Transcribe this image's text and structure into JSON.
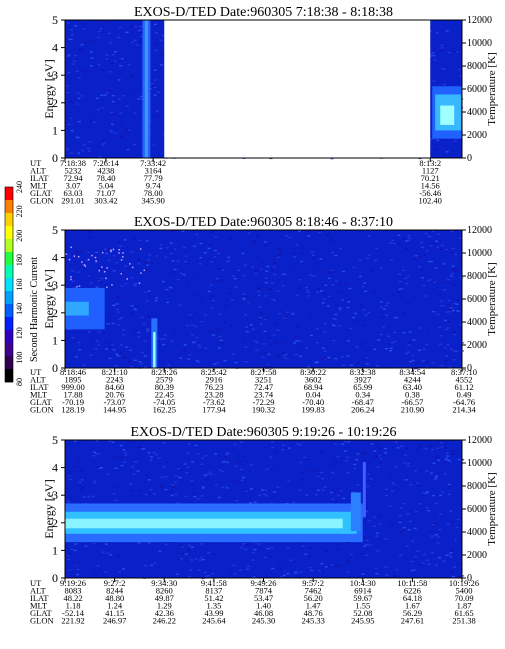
{
  "chart_data": [
    {
      "type": "heatmap",
      "title": "EXOS-D/TED   Date:960305  7:18:38 - 8:18:38",
      "ylabel": "Energy [eV]",
      "ylim": [
        0,
        5
      ],
      "y_ticks": [
        "0",
        "1",
        "2",
        "3",
        "4",
        "5"
      ],
      "y2label": "Temperature [K]",
      "y2lim": [
        0,
        12000
      ],
      "y2_ticks": [
        "0",
        "2000",
        "4000",
        "6000",
        "8000",
        "10000",
        "12000"
      ],
      "data_gaps": [
        {
          "from_frac": 0.25,
          "to_frac": 0.92
        }
      ],
      "features": [
        {
          "description": "vertical streak",
          "x_frac": 0.205
        },
        {
          "description": "emission band 1-3 eV",
          "x_from_frac": 0.925,
          "x_to_frac": 1.0
        }
      ],
      "ephemeris": {
        "row_labels": [
          "UT",
          "ALT",
          "ILAT",
          "MLT",
          "GLAT",
          "GLON"
        ],
        "columns": [
          {
            "x_frac": 0.0,
            "values": [
              "7:18:38",
              "5232",
              "72.94",
              "3.07",
              "63.03",
              "291.01"
            ]
          },
          {
            "x_frac": 0.103,
            "values": [
              "7:26:14",
              "4238",
              "78.40",
              "5.04",
              "71.07",
              "303.42"
            ]
          },
          {
            "x_frac": 0.222,
            "values": [
              "7:33:42",
              "3164",
              "77.79",
              "9.74",
              "78.00",
              "345.90"
            ]
          },
          {
            "x_frac": 0.92,
            "values": [
              "8:13:2",
              "1127",
              "70.21",
              "14.56",
              "-56.46",
              "102.40"
            ]
          }
        ]
      }
    },
    {
      "type": "heatmap",
      "title": "EXOS-D/TED   Date:960305  8:18:46 - 8:37:10",
      "ylabel": "Energy [eV]",
      "ylim": [
        0,
        5
      ],
      "y_ticks": [
        "0",
        "1",
        "2",
        "3",
        "4",
        "5"
      ],
      "y2label": "Temperature [K]",
      "y2lim": [
        0,
        12000
      ],
      "y2_ticks": [
        "0",
        "2000",
        "4000",
        "6000",
        "8000",
        "10000",
        "12000"
      ],
      "colorbar": {
        "label": "Second Harmonic Current",
        "ticks": [
          "240",
          "220",
          "200",
          "180",
          "160",
          "140",
          "120",
          "100",
          "80"
        ],
        "colors": [
          "#ff0000",
          "#ff8000",
          "#ffd000",
          "#ffff00",
          "#b0ff20",
          "#20ff40",
          "#00ffb0",
          "#00e0ff",
          "#00a0ff",
          "#0060ff",
          "#0020ff",
          "#3000c0",
          "#400090",
          "#300050",
          "#000000"
        ]
      },
      "features": [
        {
          "description": "enhancement 1.5-3 eV at start",
          "x_from_frac": 0.0,
          "x_to_frac": 0.1
        },
        {
          "description": "narrow spike 0-1.8 eV",
          "x_frac": 0.225
        }
      ],
      "ephemeris": {
        "row_labels": [
          "UT",
          "ALT",
          "ILAT",
          "MLT",
          "GLAT",
          "GLON"
        ],
        "columns": [
          {
            "x_frac": 0.0,
            "values": [
              "8:18:46",
              "1895",
              "999.00",
              "17.88",
              "-70.19",
              "128.19"
            ]
          },
          {
            "x_frac": 0.125,
            "values": [
              "8:21:10",
              "2243",
              "84.60",
              "20.76",
              "-73.07",
              "144.95"
            ]
          },
          {
            "x_frac": 0.25,
            "values": [
              "8:23:26",
              "2579",
              "80.39",
              "22.45",
              "-74.05",
              "162.25"
            ]
          },
          {
            "x_frac": 0.375,
            "values": [
              "8:25:42",
              "2916",
              "76.23",
              "23.28",
              "-73.62",
              "177.94"
            ]
          },
          {
            "x_frac": 0.5,
            "values": [
              "8:27:58",
              "3251",
              "72.47",
              "23.74",
              "-72.29",
              "190.32"
            ]
          },
          {
            "x_frac": 0.625,
            "values": [
              "8:30:22",
              "3602",
              "68.94",
              "0.04",
              "-70.40",
              "199.83"
            ]
          },
          {
            "x_frac": 0.75,
            "values": [
              "8:32:38",
              "3927",
              "65.99",
              "0.34",
              "-68.47",
              "206.24"
            ]
          },
          {
            "x_frac": 0.875,
            "values": [
              "8:34:54",
              "4244",
              "63.40",
              "0.38",
              "-66.57",
              "210.90"
            ]
          },
          {
            "x_frac": 1.0,
            "values": [
              "8:37:10",
              "4552",
              "61.12",
              "0.49",
              "-64.76",
              "214.34"
            ]
          }
        ]
      }
    },
    {
      "type": "heatmap",
      "title": "EXOS-D/TED   Date:960305  9:19:26 - 10:19:26",
      "ylabel": "Energy [eV]",
      "ylim": [
        0,
        5
      ],
      "y_ticks": [
        "0",
        "1",
        "2",
        "3",
        "4",
        "5"
      ],
      "y2label": "Temperature [K]",
      "y2lim": [
        0,
        12000
      ],
      "y2_ticks": [
        "0",
        "2000",
        "4000",
        "6000",
        "8000",
        "10000",
        "12000"
      ],
      "features": [
        {
          "description": "persistent emission band 1.3-2.7 eV",
          "x_from_frac": 0.0,
          "x_to_frac": 0.75
        },
        {
          "description": "band narrows upward near end",
          "x_frac": 0.72
        }
      ],
      "ephemeris": {
        "row_labels": [
          "UT",
          "ALT",
          "ILAT",
          "MLT",
          "GLAT",
          "GLON"
        ],
        "columns": [
          {
            "x_frac": 0.0,
            "values": [
              "9:19:26",
              "8083",
              "48.22",
              "1.18",
              "-52.14",
              "221.92"
            ]
          },
          {
            "x_frac": 0.125,
            "values": [
              "9:27:2",
              "8244",
              "48.80",
              "1.24",
              "41.15",
              "246.97"
            ]
          },
          {
            "x_frac": 0.25,
            "values": [
              "9:34:30",
              "8260",
              "49.87",
              "1.29",
              "42.36",
              "246.22"
            ]
          },
          {
            "x_frac": 0.375,
            "values": [
              "9:41:58",
              "8137",
              "51.42",
              "1.35",
              "43.99",
              "245.64"
            ]
          },
          {
            "x_frac": 0.5,
            "values": [
              "9:49:26",
              "7874",
              "53.47",
              "1.40",
              "46.08",
              "245.30"
            ]
          },
          {
            "x_frac": 0.625,
            "values": [
              "9:57:2",
              "7462",
              "56.20",
              "1.47",
              "48.76",
              "245.33"
            ]
          },
          {
            "x_frac": 0.75,
            "values": [
              "10:4:30",
              "6914",
              "59.67",
              "1.55",
              "52.08",
              "245.95"
            ]
          },
          {
            "x_frac": 0.875,
            "values": [
              "10:11:58",
              "6226",
              "64.18",
              "1.67",
              "56.29",
              "247.61"
            ]
          },
          {
            "x_frac": 1.0,
            "values": [
              "10:19:26",
              "5400",
              "70.09",
              "1.87",
              "61.65",
              "251.38"
            ]
          }
        ]
      }
    }
  ]
}
